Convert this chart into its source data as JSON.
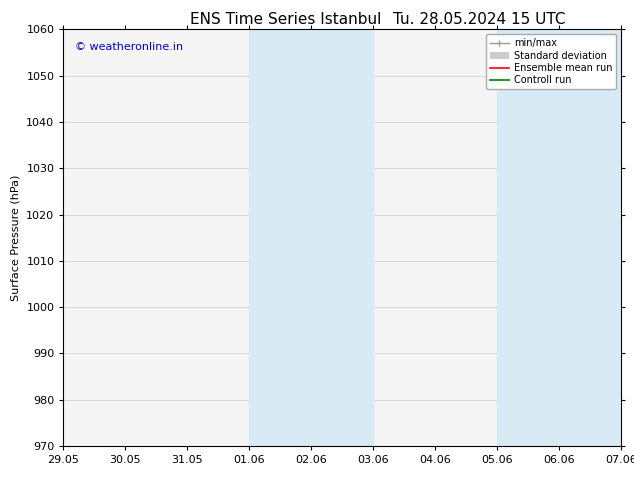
{
  "title": "ENS Time Series Istanbul",
  "title2": "Tu. 28.05.2024 15 UTC",
  "ylabel": "Surface Pressure (hPa)",
  "ylim": [
    970,
    1060
  ],
  "yticks": [
    970,
    980,
    990,
    1000,
    1010,
    1020,
    1030,
    1040,
    1050,
    1060
  ],
  "xtick_labels": [
    "29.05",
    "30.05",
    "31.05",
    "01.06",
    "02.06",
    "03.06",
    "04.06",
    "05.06",
    "06.06",
    "07.06"
  ],
  "xlim": [
    0,
    9
  ],
  "shaded_bands": [
    {
      "x_start": 3.0,
      "x_end": 5.0,
      "color": "#daeaf5"
    },
    {
      "x_start": 7.0,
      "x_end": 9.0,
      "color": "#daeaf5"
    }
  ],
  "watermark_text": "© weatheronline.in",
  "watermark_color": "#0000cc",
  "watermark_fontsize": 8,
  "bg_color": "#ffffff",
  "plot_bg_color": "#f5f5f5",
  "title_fontsize": 11,
  "axis_label_fontsize": 8,
  "tick_fontsize": 8
}
